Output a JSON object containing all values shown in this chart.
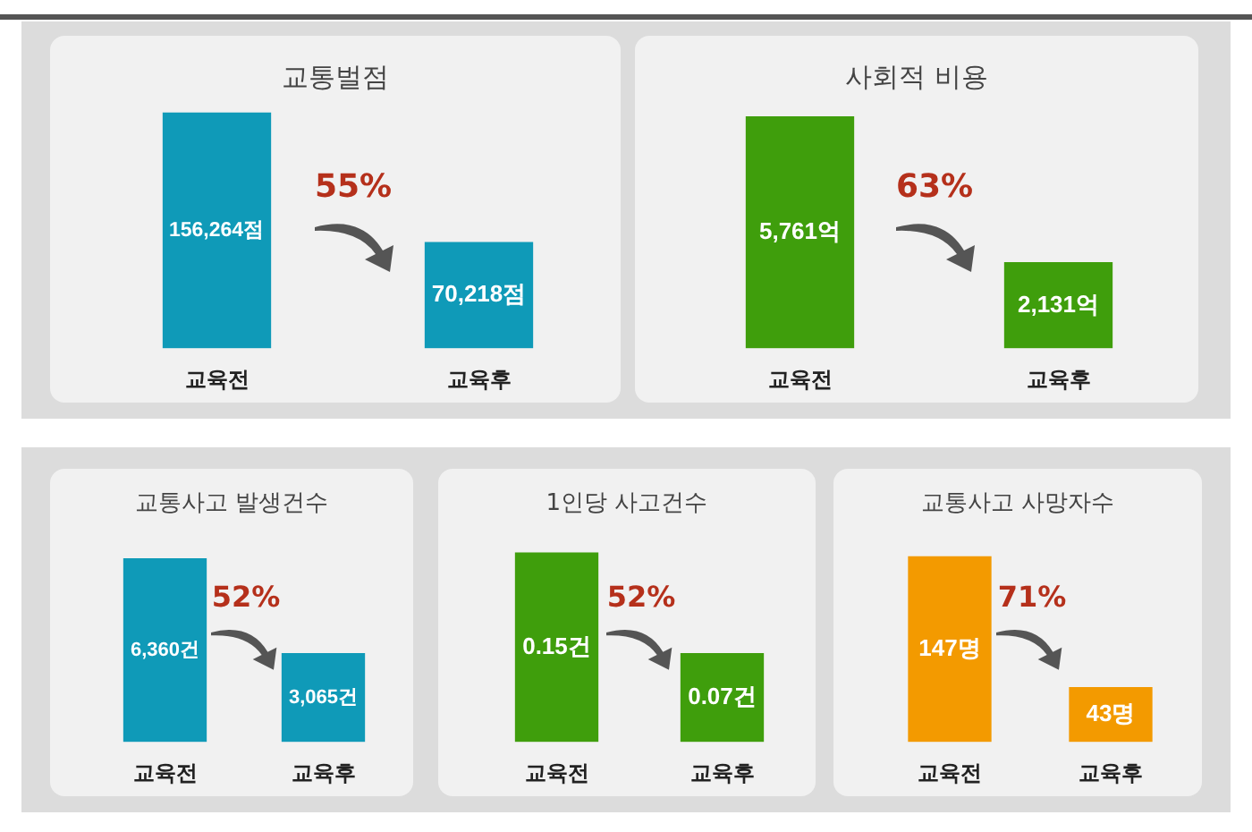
{
  "chart_data": [
    {
      "type": "bar",
      "title": "교통벌점",
      "categories": [
        "교육전",
        "교육후"
      ],
      "values": [
        156264,
        70218
      ],
      "value_labels": [
        "156,264점",
        "70,218점"
      ],
      "color": "#0f9ab8",
      "annotations": [
        "55%"
      ]
    },
    {
      "type": "bar",
      "title": "사회적 비용",
      "categories": [
        "교육전",
        "교육후"
      ],
      "values": [
        5761,
        2131
      ],
      "value_labels": [
        "5,761억",
        "2,131억"
      ],
      "color": "#3f9e0c",
      "annotations": [
        "63%"
      ]
    },
    {
      "type": "bar",
      "title": "교통사고 발생건수",
      "categories": [
        "교육전",
        "교육후"
      ],
      "values": [
        6360,
        3065
      ],
      "value_labels": [
        "6,360건",
        "3,065건"
      ],
      "color": "#0f9ab8",
      "annotations": [
        "52%"
      ]
    },
    {
      "type": "bar",
      "title": "1인당 사고건수",
      "categories": [
        "교육전",
        "교육후"
      ],
      "values": [
        0.15,
        0.07
      ],
      "value_labels": [
        "0.15건",
        "0.07건"
      ],
      "color": "#3f9e0c",
      "annotations": [
        "52%"
      ]
    },
    {
      "type": "bar",
      "title": "교통사고 사망자수",
      "categories": [
        "교육전",
        "교육후"
      ],
      "values": [
        147,
        43
      ],
      "value_labels": [
        "147명",
        "43명"
      ],
      "color": "#f39a00",
      "annotations": [
        "71%"
      ]
    }
  ]
}
